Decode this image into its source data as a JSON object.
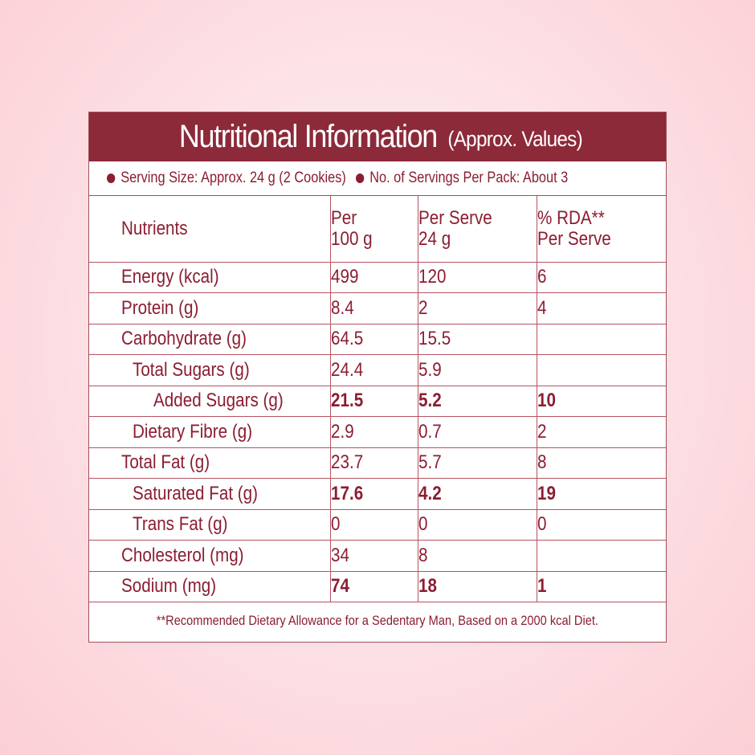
{
  "title": {
    "main": "Nutritional Information",
    "suffix": "(Approx. Values)"
  },
  "serving": {
    "size": "Serving Size: Approx. 24 g (2 Cookies)",
    "per_pack": "No. of Servings Per Pack: About 3",
    "bullet_icon": "bullet-dot"
  },
  "table": {
    "headers": {
      "nutrients": "Nutrients",
      "per100_l1": "Per",
      "per100_l2": "100 g",
      "perserve_l1": "Per Serve",
      "perserve_l2": "24 g",
      "rda_l1": "% RDA**",
      "rda_l2": "Per Serve"
    },
    "rows": [
      {
        "name": "Energy (kcal)",
        "per100": "499",
        "perserve": "120",
        "rda": "6",
        "indent": 0,
        "bold": false
      },
      {
        "name": "Protein (g)",
        "per100": "8.4",
        "perserve": "2",
        "rda": "4",
        "indent": 0,
        "bold": false
      },
      {
        "name": "Carbohydrate (g)",
        "per100": "64.5",
        "perserve": "15.5",
        "rda": "",
        "indent": 0,
        "bold": false
      },
      {
        "name": "Total Sugars (g)",
        "per100": "24.4",
        "perserve": "5.9",
        "rda": "",
        "indent": 1,
        "bold": false
      },
      {
        "name": "Added Sugars (g)",
        "per100": "21.5",
        "perserve": "5.2",
        "rda": "10",
        "indent": 2,
        "bold": true
      },
      {
        "name": "Dietary Fibre (g)",
        "per100": "2.9",
        "perserve": "0.7",
        "rda": "2",
        "indent": 1,
        "bold": false
      },
      {
        "name": "Total Fat (g)",
        "per100": "23.7",
        "perserve": "5.7",
        "rda": "8",
        "indent": 0,
        "bold": false
      },
      {
        "name": "Saturated Fat (g)",
        "per100": "17.6",
        "perserve": "4.2",
        "rda": "19",
        "indent": 1,
        "bold": true
      },
      {
        "name": "Trans Fat (g)",
        "per100": "0",
        "perserve": "0",
        "rda": "0",
        "indent": 1,
        "bold": false
      },
      {
        "name": "Cholesterol (mg)",
        "per100": "34",
        "perserve": "8",
        "rda": "",
        "indent": 0,
        "bold": false
      },
      {
        "name": "Sodium (mg)",
        "per100": "74",
        "perserve": "18",
        "rda": "1",
        "indent": 0,
        "bold": true
      }
    ]
  },
  "footer": "**Recommended Dietary Allowance for a Sedentary Man, Based on a 2000 kcal Diet.",
  "colors": {
    "header_bg": "#8c2a3a",
    "text": "#8b1e32",
    "grid": "#b5535f",
    "background": "#fde3e7"
  }
}
